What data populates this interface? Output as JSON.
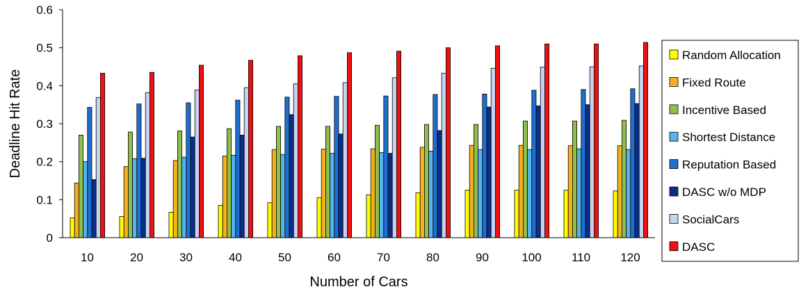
{
  "chart_data": {
    "type": "bar",
    "title": "",
    "xlabel": "Number of Cars",
    "ylabel": "Deadline Hit Rate",
    "ylim": [
      0,
      0.6
    ],
    "yticks": [
      "0",
      "0.1",
      "0.2",
      "0.3",
      "0.4",
      "0.5",
      "0.6"
    ],
    "categories": [
      "10",
      "20",
      "30",
      "40",
      "50",
      "60",
      "70",
      "80",
      "90",
      "100",
      "110",
      "120"
    ],
    "grid": false,
    "legend": "right",
    "series": [
      {
        "name": "Random Allocation",
        "color": "#ffff00",
        "values": [
          0.052,
          0.056,
          0.067,
          0.085,
          0.092,
          0.105,
          0.113,
          0.118,
          0.125,
          0.125,
          0.125,
          0.123
        ]
      },
      {
        "name": "Fixed Route",
        "color": "#f5b020",
        "values": [
          0.144,
          0.187,
          0.203,
          0.215,
          0.232,
          0.233,
          0.234,
          0.238,
          0.243,
          0.243,
          0.242,
          0.242
        ]
      },
      {
        "name": "Incentive Based",
        "color": "#8fbf4f",
        "values": [
          0.27,
          0.278,
          0.281,
          0.287,
          0.293,
          0.293,
          0.296,
          0.298,
          0.298,
          0.307,
          0.307,
          0.309
        ]
      },
      {
        "name": "Shortest Distance",
        "color": "#56b4e9",
        "values": [
          0.2,
          0.208,
          0.212,
          0.217,
          0.219,
          0.222,
          0.224,
          0.228,
          0.232,
          0.232,
          0.234,
          0.232
        ]
      },
      {
        "name": "Reputation Based",
        "color": "#1f6fd1",
        "values": [
          0.343,
          0.352,
          0.355,
          0.362,
          0.37,
          0.372,
          0.373,
          0.377,
          0.378,
          0.388,
          0.39,
          0.392
        ]
      },
      {
        "name": "DASC w/o MDP",
        "color": "#0a2f8a",
        "values": [
          0.153,
          0.209,
          0.265,
          0.27,
          0.324,
          0.273,
          0.222,
          0.282,
          0.344,
          0.347,
          0.35,
          0.353
        ]
      },
      {
        "name": "SocialCars",
        "color": "#c5d3f0",
        "values": [
          0.369,
          0.382,
          0.389,
          0.395,
          0.405,
          0.408,
          0.421,
          0.433,
          0.446,
          0.449,
          0.45,
          0.452
        ]
      },
      {
        "name": "DASC",
        "color": "#ee1111",
        "values": [
          0.433,
          0.435,
          0.454,
          0.467,
          0.479,
          0.487,
          0.491,
          0.5,
          0.505,
          0.51,
          0.51,
          0.514
        ]
      }
    ]
  }
}
